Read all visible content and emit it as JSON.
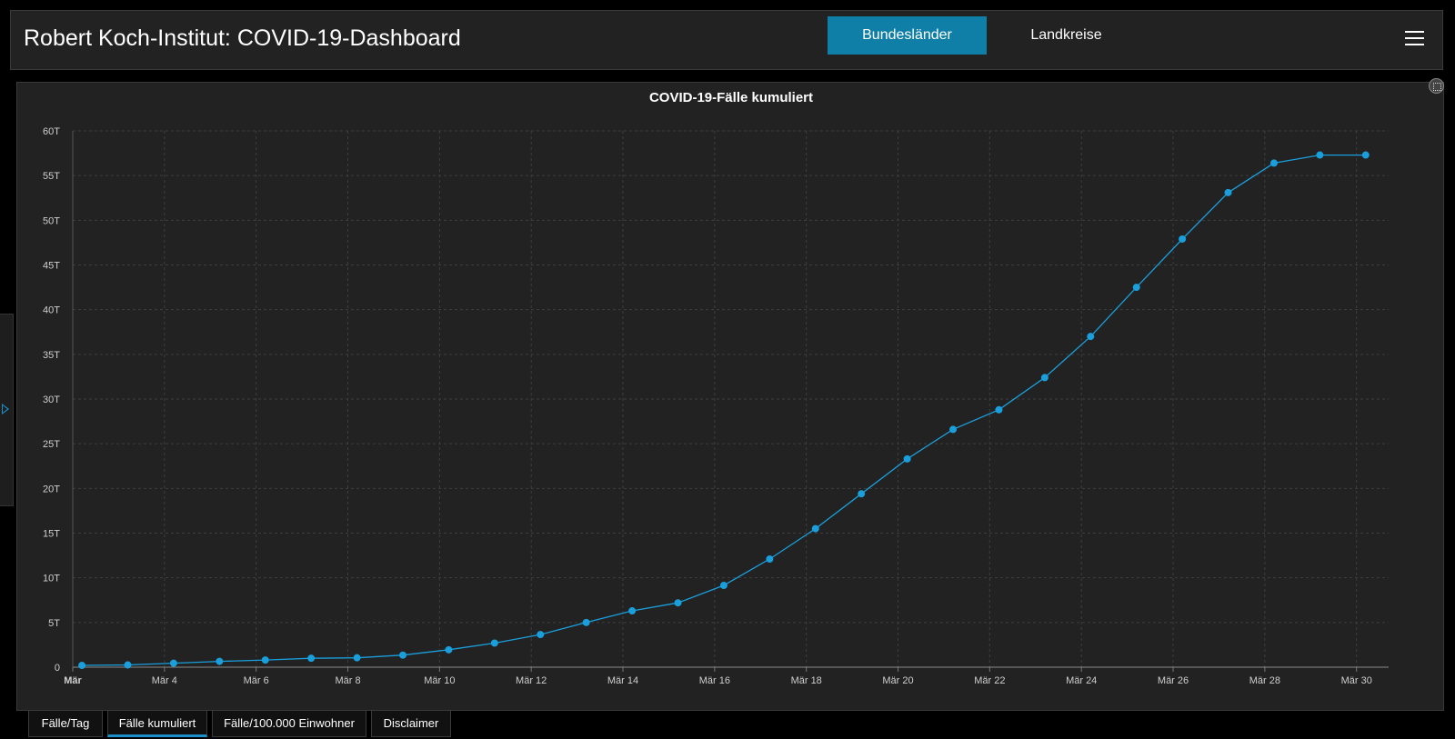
{
  "header": {
    "title": "Robert Koch-Institut: COVID-19-Dashboard",
    "tabs": [
      {
        "label": "Bundesländer",
        "active": true
      },
      {
        "label": "Landkreise",
        "active": false
      }
    ],
    "menu_icon": "hamburger-menu-icon"
  },
  "colors": {
    "accent": "#0f7fa8",
    "series": "#1a9fdc",
    "panel_bg": "#222222",
    "page_bg": "#000000"
  },
  "chart_data": {
    "type": "line",
    "title": "COVID-19-Fälle kumuliert",
    "xlabel": "",
    "ylabel": "",
    "x_tick_labels": [
      "Mär",
      "Mär 4",
      "Mär 6",
      "Mär 8",
      "Mär 10",
      "Mär 12",
      "Mär 14",
      "Mär 16",
      "Mär 18",
      "Mär 20",
      "Mär 22",
      "Mär 24",
      "Mär 26",
      "Mär 28",
      "Mär 30"
    ],
    "x_tick_days": [
      2,
      4,
      6,
      8,
      10,
      12,
      14,
      16,
      18,
      20,
      22,
      24,
      26,
      28,
      30
    ],
    "y_tick_labels": [
      "0",
      "5T",
      "10T",
      "15T",
      "20T",
      "25T",
      "30T",
      "35T",
      "40T",
      "45T",
      "50T",
      "55T",
      "60T"
    ],
    "ylim": [
      0,
      60000
    ],
    "xlim": [
      2,
      30.7
    ],
    "grid": true,
    "series": [
      {
        "days": [
          2.2,
          3.2,
          4.2,
          5.2,
          6.2,
          7.2,
          8.2,
          9.2,
          10.2,
          11.2,
          12.2,
          13.2,
          14.2,
          15.2,
          16.2,
          17.2,
          18.2,
          19.2,
          20.2,
          21.2,
          22.2,
          23.2,
          24.2,
          25.2,
          26.2,
          27.2,
          28.2,
          29.2,
          30.2
        ],
        "values": [
          200,
          250,
          450,
          650,
          800,
          1000,
          1050,
          1350,
          1950,
          2700,
          3650,
          5000,
          6300,
          7200,
          9150,
          12100,
          15500,
          19400,
          23300,
          26600,
          28800,
          32400,
          37000,
          42500,
          47900,
          53100,
          56400,
          57300,
          57300
        ]
      }
    ]
  },
  "bottom_tabs": [
    {
      "label": "Fälle/Tag",
      "active": false
    },
    {
      "label": "Fälle kumuliert",
      "active": true
    },
    {
      "label": "Fälle/100.000 Einwohner",
      "active": false
    },
    {
      "label": "Disclaimer",
      "active": false
    }
  ]
}
